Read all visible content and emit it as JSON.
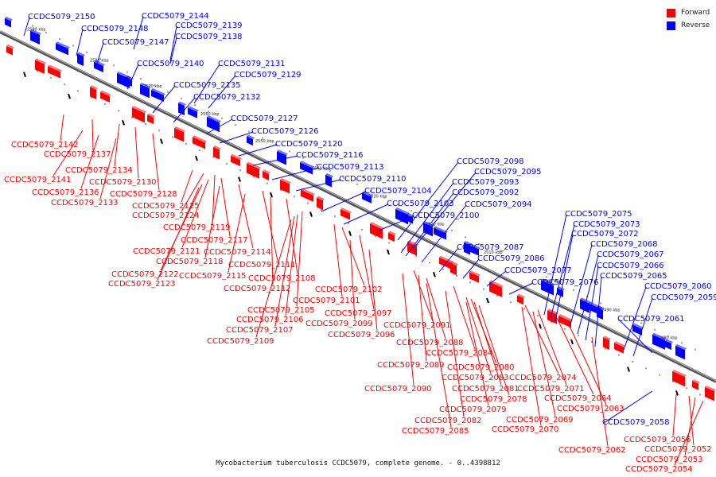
{
  "caption": "Mycobacterium tuberculosis CCDC5079, complete genome. - 0..4398812",
  "legend": [
    {
      "label": "Forward",
      "color": "#ff0000"
    },
    {
      "label": "Reverse",
      "color": "#0000ff"
    }
  ],
  "colors": {
    "forward": "#ff0000",
    "reverse": "#0000ff",
    "axis": "#555555",
    "pointer": "#000000"
  },
  "ticks": [
    "2590 kbp",
    "2580 kbp",
    "2570 kbp",
    "2560 kbp",
    "2550 kbp",
    "2540 kbp",
    "2530 kbp",
    "2520 kbp",
    "2510 kbp",
    "2500 kbp",
    "2490 kbp",
    "2480 kbp"
  ],
  "reverse_genes": [
    "CCDC5079_2150",
    "CCDC5079_2144",
    "CCDC5079_2148",
    "CCDC5079_2139",
    "CCDC5079_2138",
    "CCDC5079_2147",
    "CCDC5079_2140",
    "CCDC5079_2131",
    "CCDC5079_2129",
    "CCDC5079_2135",
    "CCDC5079_2132",
    "CCDC5079_2127",
    "CCDC5079_2126",
    "CCDC5079_2120",
    "CCDC5079_2116",
    "CCDC5079_2113",
    "CCDC5079_2110",
    "CCDC5079_2104",
    "CCDC5079_2103",
    "CCDC5079_2098",
    "CCDC5079_2095",
    "CCDC5079_2093",
    "CCDC5079_2092",
    "CCDC5079_2094",
    "CCDC5079_2100",
    "CCDC5079_2087",
    "CCDC5079_2086",
    "CCDC5079_2077",
    "CCDC5079_2076",
    "CCDC5079_2075",
    "CCDC5079_2073",
    "CCDC5079_2072",
    "CCDC5079_2068",
    "CCDC5079_2067",
    "CCDC5079_2066",
    "CCDC5079_2065",
    "CCDC5079_2060",
    "CCDC5079_2059",
    "CCDC5079_2061",
    "CCDC5079_2058"
  ],
  "forward_genes": [
    "CCDC5079_2142",
    "CCDC5079_2137",
    "CCDC5079_2134",
    "CCDC5079_2141",
    "CCDC5079_2130",
    "CCDC5079_2136",
    "CCDC5079_2128",
    "CCDC5079_2133",
    "CCDC5079_2125",
    "CCDC5079_2124",
    "CCDC5079_2119",
    "CCDC5079_2117",
    "CCDC5079_2121",
    "CCDC5079_2114",
    "CCDC5079_2118",
    "CCDC5079_2111",
    "CCDC5079_2122",
    "CCDC5079_2115",
    "CCDC5079_2108",
    "CCDC5079_2123",
    "CCDC5079_2112",
    "CCDC5079_2102",
    "CCDC5079_2101",
    "CCDC5079_2105",
    "CCDC5079_2097",
    "CCDC5079_2106",
    "CCDC5079_2099",
    "CCDC5079_2091",
    "CCDC5079_2107",
    "CCDC5079_2096",
    "CCDC5079_2109",
    "CCDC5079_2088",
    "CCDC5079_2084",
    "CCDC5079_2089",
    "CCDC5079_2080",
    "CCDC5079_2083",
    "CCDC5079_2074",
    "CCDC5079_2090",
    "CCDC5079_2081",
    "CCDC5079_2071",
    "CCDC5079_2078",
    "CCDC5079_2064",
    "CCDC5079_2079",
    "CCDC5079_2063",
    "CCDC5079_2082",
    "CCDC5079_2069",
    "CCDC5079_2085",
    "CCDC5079_2070",
    "CCDC5079_2062",
    "CCDC5079_2056",
    "CCDC5079_2052",
    "CCDC5079_2053",
    "CCDC5079_2054"
  ]
}
